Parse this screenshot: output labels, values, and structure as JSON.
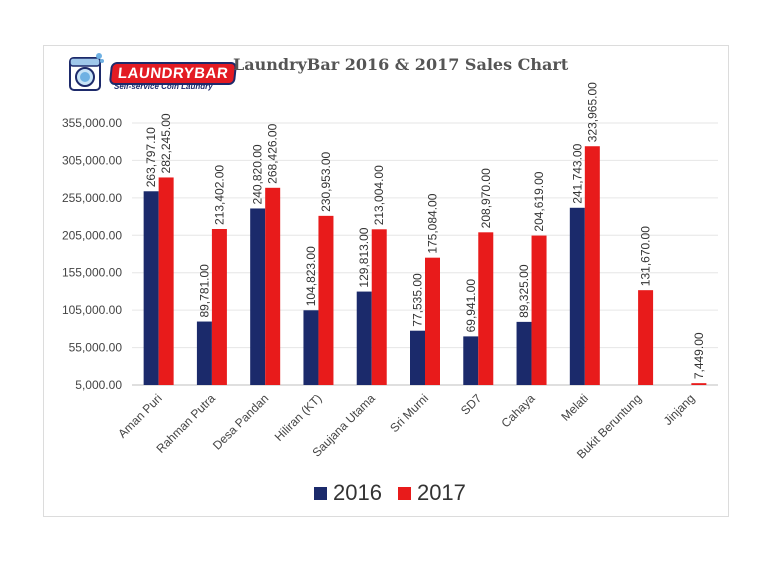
{
  "logo": {
    "word": "LAUNDRYBAR",
    "tagline": "Self-service Coin Laundry",
    "icon": "washing-machine-mascot-icon"
  },
  "chart_data": {
    "type": "bar",
    "title": "LaundryBar 2016 & 2017 Sales Chart",
    "xlabel": "",
    "ylabel": "",
    "ylim": [
      5000,
      355000
    ],
    "yticks": [
      5000,
      55000,
      105000,
      155000,
      205000,
      255000,
      305000,
      355000
    ],
    "ytick_labels": [
      "5,000.00",
      "55,000.00",
      "105,000.00",
      "155,000.00",
      "205,000.00",
      "255,000.00",
      "305,000.00",
      "355,000.00"
    ],
    "categories": [
      "Aman Puri",
      "Rahman Putra",
      "Desa Pandan",
      "Hiliran (KT)",
      "Saujana Utama",
      "Sri Murni",
      "SD7",
      "Cahaya",
      "Melati",
      "Bukit Beruntung",
      "Jinjang"
    ],
    "series": [
      {
        "name": "2016",
        "color": "#1b2a6b",
        "values": [
          263797.1,
          89781.0,
          240820.0,
          104823.0,
          129813.0,
          77535.0,
          69941.0,
          89325.0,
          241743.0,
          null,
          null
        ],
        "labels": [
          "263,797.10",
          "89,781.00",
          "240,820.00",
          "104,823.00",
          "129,813.00",
          "77,535.00",
          "69,941.00",
          "89,325.00",
          "241,743.00",
          "",
          ""
        ]
      },
      {
        "name": "2017",
        "color": "#e81b1b",
        "values": [
          282245.0,
          213402.0,
          268426.0,
          230953.0,
          213004.0,
          175084.0,
          208970.0,
          204619.0,
          323965.0,
          131670.0,
          7449.0
        ],
        "labels": [
          "282,245.00",
          "213,402.00",
          "268,426.00",
          "230,953.00",
          "213,004.00",
          "175,084.00",
          "208,970.00",
          "204,619.00",
          "323,965.00",
          "131,670.00",
          "7,449.00"
        ]
      }
    ],
    "grid": true,
    "legend_position": "bottom-center"
  }
}
